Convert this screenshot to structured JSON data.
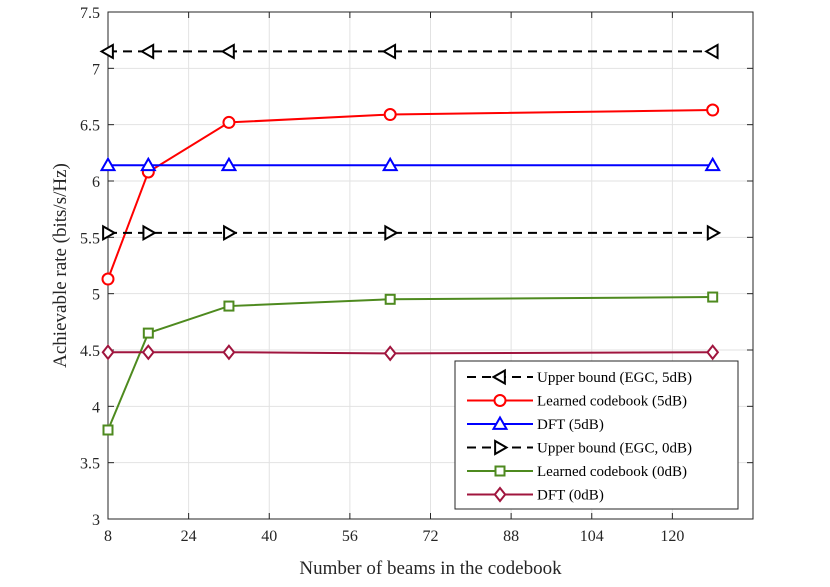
{
  "chart_data": {
    "type": "line",
    "xlabel": "Number of beams in the codebook",
    "ylabel": "Achievable rate (bits/s/Hz)",
    "xlim": [
      8,
      136
    ],
    "ylim": [
      3,
      7.5
    ],
    "xticks": [
      8,
      24,
      40,
      56,
      72,
      88,
      104,
      120
    ],
    "yticks": [
      3,
      3.5,
      4,
      4.5,
      5,
      5.5,
      6,
      6.5,
      7,
      7.5
    ],
    "grid": true,
    "legend_position": "bottom-right",
    "series": [
      {
        "name": "Upper bound (EGC, 5dB)",
        "color": "#000000",
        "dash": "dashed",
        "marker": "triangle-left",
        "x": [
          8,
          16,
          32,
          64,
          128
        ],
        "y": [
          7.15,
          7.15,
          7.15,
          7.15,
          7.15
        ]
      },
      {
        "name": "Learned codebook (5dB)",
        "color": "#ff0000",
        "dash": "solid",
        "marker": "circle",
        "x": [
          8,
          16,
          32,
          64,
          128
        ],
        "y": [
          5.13,
          6.08,
          6.52,
          6.59,
          6.63
        ]
      },
      {
        "name": "DFT (5dB)",
        "color": "#0000ff",
        "dash": "solid",
        "marker": "triangle-up",
        "x": [
          8,
          16,
          32,
          64,
          128
        ],
        "y": [
          6.14,
          6.14,
          6.14,
          6.14,
          6.14
        ]
      },
      {
        "name": "Upper bound (EGC, 0dB)",
        "color": "#000000",
        "dash": "dashed",
        "marker": "triangle-right",
        "x": [
          8,
          16,
          32,
          64,
          128
        ],
        "y": [
          5.54,
          5.54,
          5.54,
          5.54,
          5.54
        ]
      },
      {
        "name": "Learned codebook (0dB)",
        "color": "#4e8a1f",
        "dash": "solid",
        "marker": "square",
        "x": [
          8,
          16,
          32,
          64,
          128
        ],
        "y": [
          3.79,
          4.65,
          4.89,
          4.95,
          4.97
        ]
      },
      {
        "name": "DFT (0dB)",
        "color": "#a0153e",
        "dash": "solid",
        "marker": "diamond",
        "x": [
          8,
          16,
          32,
          64,
          128
        ],
        "y": [
          4.48,
          4.48,
          4.48,
          4.47,
          4.48
        ]
      }
    ]
  }
}
